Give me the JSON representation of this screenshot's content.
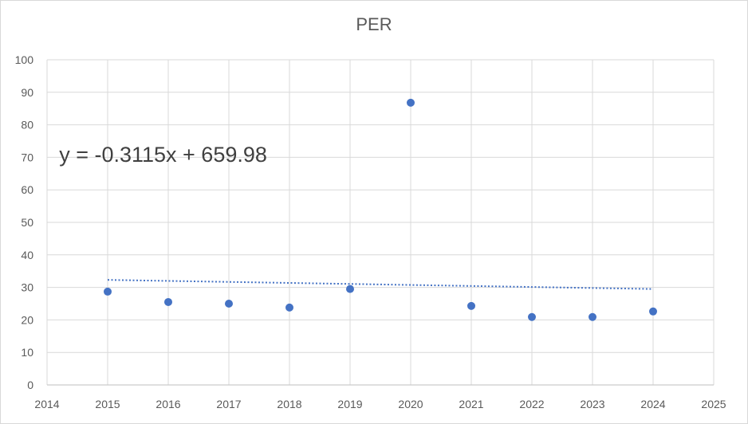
{
  "chart_data": {
    "type": "scatter",
    "title": "PER",
    "xlabel": "",
    "ylabel": "",
    "xlim": [
      2014,
      2025
    ],
    "ylim": [
      0,
      100
    ],
    "x_ticks": [
      "2014",
      "2015",
      "2016",
      "2017",
      "2018",
      "2019",
      "2020",
      "2021",
      "2022",
      "2023",
      "2024",
      "2025"
    ],
    "y_ticks": [
      "0",
      "10",
      "20",
      "30",
      "40",
      "50",
      "60",
      "70",
      "80",
      "90",
      "100"
    ],
    "grid": true,
    "legend": "none",
    "series": [
      {
        "x": [
          2015,
          2016,
          2017,
          2018,
          2019,
          2020,
          2021,
          2022,
          2023,
          2024
        ],
        "y": [
          28.7,
          25.5,
          25.0,
          23.8,
          29.5,
          86.8,
          24.3,
          20.9,
          20.9,
          22.6
        ],
        "color": "#4472c4"
      }
    ],
    "trendline": {
      "type": "linear",
      "slope": -0.3115,
      "intercept": 659.98,
      "x_range": [
        2015,
        2024
      ],
      "style": "dotted",
      "color": "#4472c4",
      "equation": "y = -0.3115x + 659.98"
    }
  }
}
